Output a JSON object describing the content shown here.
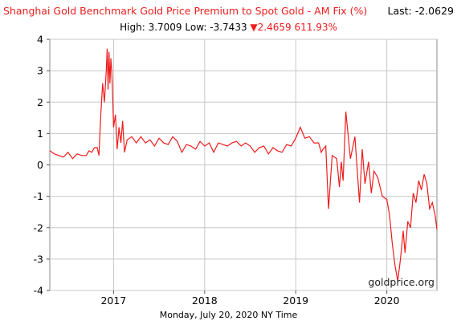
{
  "header": {
    "title": "Shanghai Gold Benchmark Gold Price Premium to Spot Gold - AM Fix (%)",
    "last_label": "Last:",
    "last_value": "-2.0629",
    "high_label": "High:",
    "high_value": "3.7009",
    "low_label": "Low:",
    "low_value": "-3.7433",
    "change_arrow": "▼",
    "change_value": "2.4659",
    "change_pct": "611.93%"
  },
  "footer": {
    "date_text": "Monday, July 20, 2020 NY Time"
  },
  "watermark": "goldprice.org",
  "colors": {
    "line": "#ee1c1c",
    "grid": "#c8c8c8",
    "axis": "#000000"
  },
  "chart_data": {
    "type": "line",
    "title": "Shanghai Gold Benchmark Gold Price Premium to Spot Gold - AM Fix (%)",
    "xlabel": "Monday, July 20, 2020 NY Time",
    "ylabel": "",
    "ylim": [
      -4,
      4
    ],
    "yticks": [
      4,
      3,
      2,
      1,
      0,
      -1,
      -2,
      -3,
      -4
    ],
    "xlim": [
      2016.3,
      2020.55
    ],
    "xticks": [
      {
        "value": 2017.0,
        "label": "2017"
      },
      {
        "value": 2018.0,
        "label": "2018"
      },
      {
        "value": 2019.0,
        "label": "2019"
      },
      {
        "value": 2020.0,
        "label": "2020"
      }
    ],
    "grid": true,
    "series": [
      {
        "x": [
          2016.3,
          2016.35,
          2016.4,
          2016.45,
          2016.5,
          2016.55,
          2016.6,
          2016.65,
          2016.7,
          2016.73,
          2016.76,
          2016.79,
          2016.82,
          2016.84,
          2016.86,
          2016.88,
          2016.9,
          2016.92,
          2016.93,
          2016.94,
          2016.95,
          2016.96,
          2016.97,
          2016.98,
          2016.99,
          2017.0,
          2017.02,
          2017.04,
          2017.06,
          2017.08,
          2017.1,
          2017.12,
          2017.15,
          2017.2,
          2017.25,
          2017.3,
          2017.35,
          2017.4,
          2017.45,
          2017.5,
          2017.55,
          2017.6,
          2017.65,
          2017.7,
          2017.75,
          2017.8,
          2017.85,
          2017.9,
          2017.95,
          2018.0,
          2018.05,
          2018.1,
          2018.15,
          2018.2,
          2018.25,
          2018.3,
          2018.35,
          2018.4,
          2018.45,
          2018.5,
          2018.55,
          2018.6,
          2018.65,
          2018.7,
          2018.75,
          2018.8,
          2018.85,
          2018.9,
          2018.95,
          2019.0,
          2019.05,
          2019.1,
          2019.15,
          2019.2,
          2019.25,
          2019.28,
          2019.3,
          2019.33,
          2019.36,
          2019.4,
          2019.45,
          2019.48,
          2019.5,
          2019.52,
          2019.55,
          2019.6,
          2019.65,
          2019.7,
          2019.73,
          2019.76,
          2019.8,
          2019.83,
          2019.86,
          2019.9,
          2019.95,
          2020.0,
          2020.03,
          2020.06,
          2020.09,
          2020.12,
          2020.15,
          2020.18,
          2020.2,
          2020.23,
          2020.26,
          2020.29,
          2020.32,
          2020.35,
          2020.38,
          2020.41,
          2020.44,
          2020.47,
          2020.5,
          2020.53,
          2020.55
        ],
        "y": [
          0.45,
          0.35,
          0.3,
          0.25,
          0.4,
          0.2,
          0.35,
          0.3,
          0.3,
          0.45,
          0.4,
          0.55,
          0.55,
          0.3,
          1.6,
          2.6,
          2.0,
          3.0,
          3.7,
          2.4,
          3.6,
          2.6,
          3.4,
          3.0,
          2.2,
          1.2,
          1.6,
          0.5,
          1.2,
          0.7,
          1.4,
          0.4,
          0.8,
          0.9,
          0.7,
          0.9,
          0.7,
          0.8,
          0.6,
          0.85,
          0.7,
          0.65,
          0.9,
          0.75,
          0.4,
          0.65,
          0.6,
          0.5,
          0.75,
          0.6,
          0.7,
          0.4,
          0.7,
          0.65,
          0.6,
          0.7,
          0.75,
          0.6,
          0.7,
          0.6,
          0.4,
          0.55,
          0.6,
          0.35,
          0.55,
          0.45,
          0.4,
          0.65,
          0.6,
          0.85,
          1.2,
          0.85,
          0.9,
          0.7,
          0.7,
          0.4,
          0.5,
          0.6,
          -1.4,
          0.3,
          0.2,
          -0.7,
          0.1,
          -0.5,
          1.7,
          0.2,
          0.9,
          -1.2,
          0.5,
          -0.6,
          0.1,
          -0.9,
          -0.2,
          -0.4,
          -1.0,
          -1.1,
          -1.6,
          -2.5,
          -3.2,
          -3.7,
          -3.0,
          -2.1,
          -2.8,
          -1.8,
          -2.0,
          -0.9,
          -1.2,
          -0.5,
          -0.8,
          -0.3,
          -0.6,
          -1.4,
          -1.2,
          -1.6,
          -2.06
        ]
      }
    ]
  }
}
